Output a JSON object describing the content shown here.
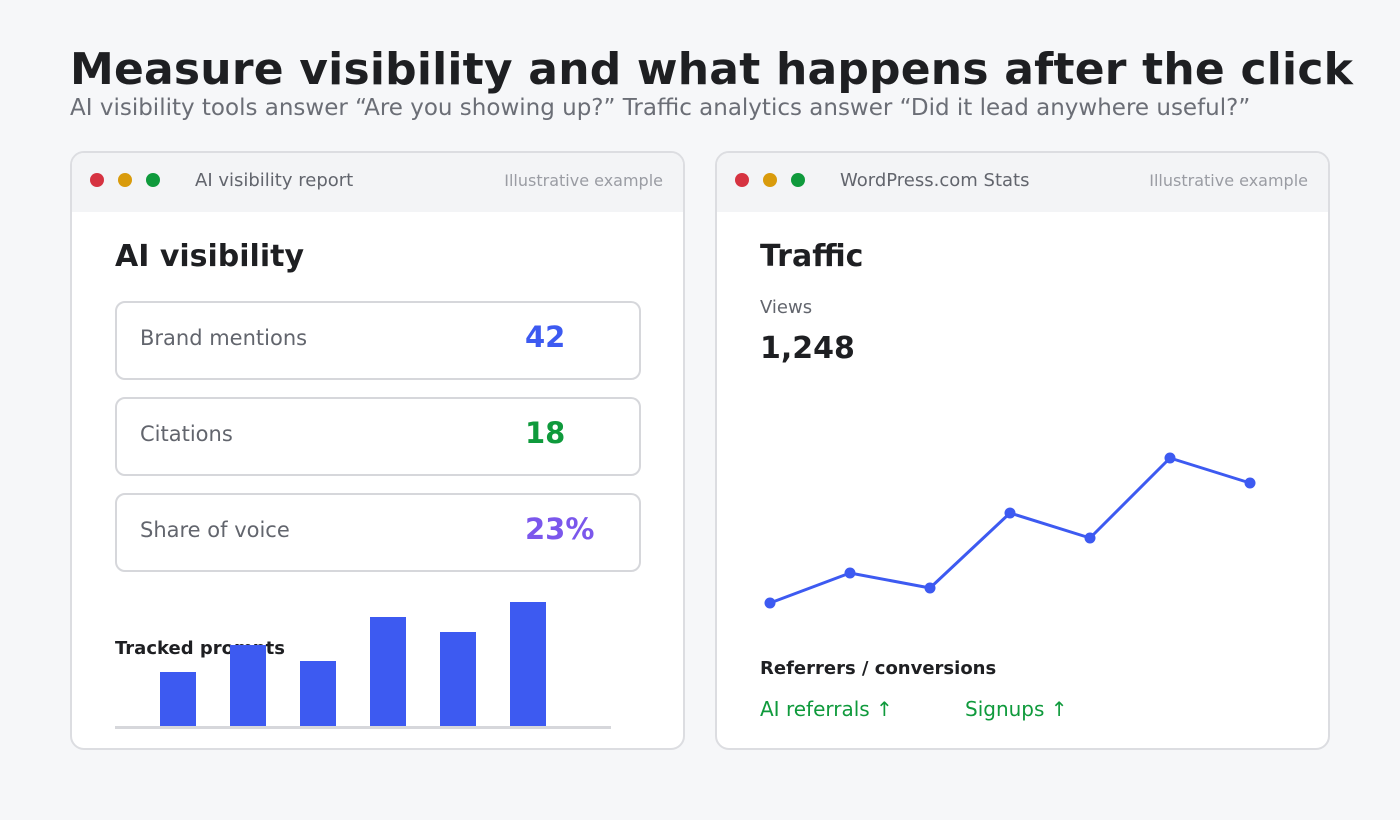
{
  "page": {
    "title": "Measure visibility and what happens after the click",
    "subtitle": "AI visibility tools answer “Are you showing up?” Traffic analytics answer “Did it lead anywhere useful?”"
  },
  "left_panel": {
    "window_title": "AI visibility report",
    "note": "Illustrative example",
    "heading": "AI visibility",
    "metrics": [
      {
        "label": "Brand mentions",
        "value": "42",
        "color": "#3d5af1"
      },
      {
        "label": "Citations",
        "value": "18",
        "color": "#0f9a3c"
      },
      {
        "label": "Share of voice",
        "value": "23%",
        "color": "#7b57ec"
      }
    ],
    "bars_label": "Tracked prompts"
  },
  "right_panel": {
    "window_title": "WordPress.com Stats",
    "note": "Illustrative example",
    "heading": "Traffic",
    "views_label": "Views",
    "views_value": "1,248",
    "referrers_heading": "Referrers / conversions",
    "referrer_items": [
      "AI referrals ↑",
      "Signups ↑"
    ]
  },
  "chart_data": [
    {
      "type": "bar",
      "title": "Tracked prompts",
      "values": [
        54,
        81,
        65,
        109,
        94,
        124
      ],
      "color": "#3d5af1",
      "grid": false
    },
    {
      "type": "line",
      "title": "",
      "values": [
        120,
        150,
        135,
        210,
        185,
        265,
        240
      ],
      "color": "#3d5af1",
      "grid": false
    }
  ],
  "colors": {
    "accent": "#3d5af1",
    "positive": "#0f9a3c",
    "purple": "#7b57ec",
    "window_red": "#d63341",
    "window_yellow": "#d99b0c",
    "window_green": "#0f9a3c"
  }
}
